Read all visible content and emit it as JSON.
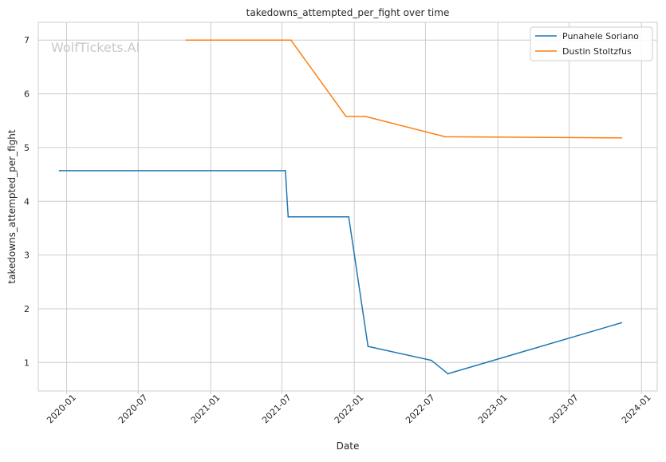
{
  "chart_data": {
    "type": "line",
    "title": "takedowns_attempted_per_fight over time",
    "xlabel": "Date",
    "ylabel": "takedowns_attempted_per_fight",
    "watermark": "WolfTickets.AI",
    "xlim": [
      "2019-10-21",
      "2024-02-10"
    ],
    "ylim": [
      0.47,
      7.33
    ],
    "x_ticks": [
      "2020-01-01",
      "2020-07-01",
      "2021-01-01",
      "2021-07-01",
      "2022-01-01",
      "2022-07-01",
      "2023-01-01",
      "2023-07-01",
      "2024-01-01"
    ],
    "x_tick_labels": [
      "2020-01",
      "2020-07",
      "2021-01",
      "2021-07",
      "2022-01",
      "2022-07",
      "2023-01",
      "2023-07",
      "2024-01"
    ],
    "y_ticks": [
      1,
      2,
      3,
      4,
      5,
      6,
      7
    ],
    "y_tick_labels": [
      "1",
      "2",
      "3",
      "4",
      "5",
      "6",
      "7"
    ],
    "grid": true,
    "legend_position": "top-right",
    "series": [
      {
        "name": "Punahele Soriano",
        "color": "#1f77b4",
        "x": [
          "2019-12-14",
          "2021-07-10",
          "2021-07-17",
          "2021-12-18",
          "2022-02-05",
          "2022-07-16",
          "2022-08-27",
          "2023-11-11"
        ],
        "y": [
          4.57,
          4.57,
          3.71,
          3.71,
          1.3,
          1.04,
          0.79,
          1.74
        ]
      },
      {
        "name": "Dustin Stoltzfus",
        "color": "#ff7f0e",
        "x": [
          "2020-10-31",
          "2021-07-24",
          "2021-12-11",
          "2022-01-29",
          "2022-08-20",
          "2023-11-11"
        ],
        "y": [
          7.0,
          7.0,
          5.58,
          5.58,
          5.2,
          5.18
        ]
      }
    ]
  }
}
